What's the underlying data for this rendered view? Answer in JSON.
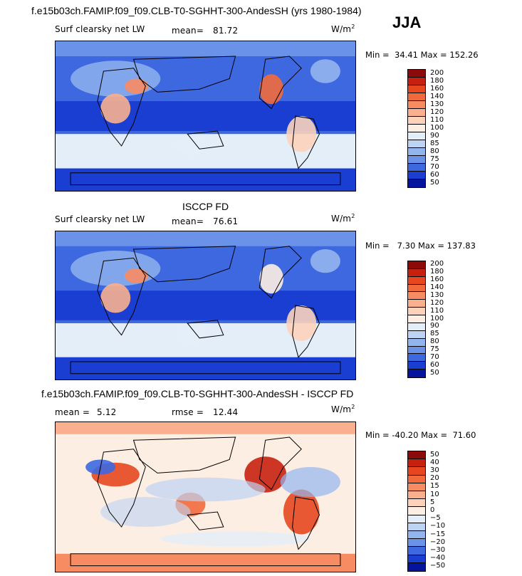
{
  "season": "JJA",
  "units": "W/m",
  "units_exp": "2",
  "chart_data": [
    {
      "type": "heatmap",
      "title": "f.e15b03ch.FAMIP.f09_f09.CLB-T0-SGHHT-300-AndesSH (yrs 1980-1984)",
      "variable": "Surf clearsky net LW",
      "mean_label": "mean=",
      "mean": "81.72",
      "min_label": "Min =",
      "min": "34.41",
      "max_label": "Max =",
      "max": "152.26",
      "levels": [
        "200",
        "180",
        "160",
        "140",
        "130",
        "120",
        "110",
        "100",
        "90",
        "85",
        "80",
        "75",
        "70",
        "60",
        "50"
      ],
      "colors": [
        "#8c0a0a",
        "#c8200f",
        "#e6471e",
        "#f26a3c",
        "#f78c62",
        "#fab08e",
        "#fcd2bb",
        "#fdeee3",
        "#e3eef9",
        "#bcd3f3",
        "#93b5ee",
        "#6a92e8",
        "#3d68e0",
        "#1a3ed2",
        "#05149c"
      ]
    },
    {
      "type": "heatmap",
      "title": "ISCCP FD",
      "variable": "Surf clearsky net LW",
      "mean_label": "mean=",
      "mean": "76.61",
      "min_label": "Min =",
      "min": "7.30",
      "max_label": "Max =",
      "max": "137.83",
      "levels": [
        "200",
        "180",
        "160",
        "140",
        "130",
        "120",
        "110",
        "100",
        "90",
        "85",
        "80",
        "75",
        "70",
        "60",
        "50"
      ],
      "colors": [
        "#8c0a0a",
        "#c8200f",
        "#e6471e",
        "#f26a3c",
        "#f78c62",
        "#fab08e",
        "#fcd2bb",
        "#fdeee3",
        "#e3eef9",
        "#bcd3f3",
        "#93b5ee",
        "#6a92e8",
        "#3d68e0",
        "#1a3ed2",
        "#05149c"
      ]
    },
    {
      "type": "heatmap",
      "title": "f.e15b03ch.FAMIP.f09_f09.CLB-T0-SGHHT-300-AndesSH - ISCCP FD",
      "mean_label": "mean =",
      "mean": "5.12",
      "rmse_label": "rmse =",
      "rmse": "12.44",
      "min_label": "Min =",
      "min": "-40.20",
      "max_label": "Max =",
      "max": "71.60",
      "levels": [
        "50",
        "40",
        "30",
        "20",
        "15",
        "10",
        "5",
        "0",
        "−5",
        "−10",
        "−15",
        "−20",
        "−30",
        "−40",
        "−50"
      ],
      "colors": [
        "#8c0a0a",
        "#c8200f",
        "#e6471e",
        "#f26a3c",
        "#f78c62",
        "#fab08e",
        "#fcd2bb",
        "#fdeee3",
        "#e3eef9",
        "#bcd3f3",
        "#93b5ee",
        "#6a92e8",
        "#3d68e0",
        "#1a3ed2",
        "#05149c"
      ]
    }
  ]
}
